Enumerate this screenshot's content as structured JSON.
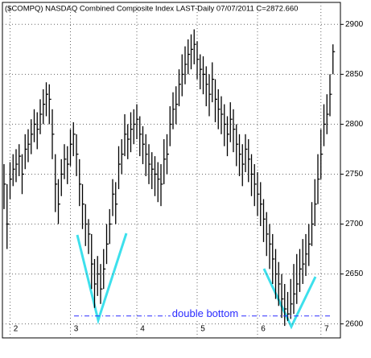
{
  "chart_data": {
    "type": "ohlc",
    "title": "($COMPQ) NASDAQ Combined Composite Index LAST-Daily  07/07/2011  C=2872.660",
    "categories": [
      null,
      null,
      "2",
      null,
      null,
      null,
      null,
      null,
      null,
      null,
      null,
      null,
      null,
      null,
      null,
      null,
      null,
      null,
      null,
      null,
      null,
      null,
      "3",
      null,
      null,
      null,
      null,
      null,
      null,
      null,
      null,
      null,
      null,
      null,
      null,
      null,
      null,
      null,
      null,
      null,
      null,
      null,
      null,
      null,
      "4",
      null,
      null,
      null,
      null,
      null,
      null,
      null,
      null,
      null,
      null,
      null,
      null,
      null,
      null,
      null,
      null,
      null,
      null,
      null,
      "5",
      null,
      null,
      null,
      null,
      null,
      null,
      null,
      null,
      null,
      null,
      null,
      null,
      null,
      null,
      null,
      null,
      null,
      null,
      null,
      "6",
      null,
      null,
      null,
      null,
      null,
      null,
      null,
      null,
      null,
      null,
      null,
      null,
      null,
      null,
      null,
      null,
      null,
      null,
      null,
      null,
      "7",
      null,
      null,
      null,
      null
    ],
    "high": [
      2760,
      2740,
      2762,
      2770,
      2775,
      2780,
      2770,
      2790,
      2795,
      2805,
      2815,
      2812,
      2825,
      2835,
      2842,
      2840,
      2815,
      2770,
      2745,
      2765,
      2780,
      2778,
      2795,
      2802,
      2790,
      2765,
      2740,
      2720,
      2705,
      2690,
      2665,
      2668,
      2660,
      2675,
      2700,
      2715,
      2745,
      2742,
      2778,
      2785,
      2810,
      2800,
      2812,
      2815,
      2820,
      2808,
      2798,
      2790,
      2780,
      2772,
      2768,
      2762,
      2760,
      2785,
      2790,
      2818,
      2832,
      2838,
      2855,
      2870,
      2878,
      2885,
      2890,
      2895,
      2883,
      2870,
      2868,
      2858,
      2850,
      2862,
      2845,
      2835,
      2828,
      2820,
      2808,
      2822,
      2815,
      2800,
      2790,
      2780,
      2790,
      2785,
      2770,
      2760,
      2752,
      2742,
      2725,
      2712,
      2700,
      2690,
      2675,
      2662,
      2650,
      2640,
      2632,
      2645,
      2660,
      2670,
      2675,
      2685,
      2690,
      2700,
      2722,
      2745,
      2770,
      2795,
      2820,
      2830,
      2850,
      2880
    ],
    "low": [
      2715,
      2675,
      2725,
      2738,
      2742,
      2748,
      2730,
      2755,
      2762,
      2770,
      2782,
      2775,
      2790,
      2800,
      2808,
      2800,
      2765,
      2712,
      2700,
      2728,
      2745,
      2740,
      2758,
      2768,
      2748,
      2718,
      2695,
      2678,
      2670,
      2635,
      2616,
      2628,
      2620,
      2635,
      2660,
      2680,
      2708,
      2700,
      2735,
      2750,
      2768,
      2765,
      2772,
      2780,
      2785,
      2768,
      2760,
      2748,
      2740,
      2735,
      2728,
      2722,
      2718,
      2740,
      2750,
      2778,
      2795,
      2800,
      2818,
      2828,
      2840,
      2850,
      2855,
      2860,
      2845,
      2835,
      2830,
      2818,
      2808,
      2822,
      2802,
      2795,
      2790,
      2778,
      2768,
      2782,
      2772,
      2758,
      2748,
      2738,
      2752,
      2742,
      2728,
      2718,
      2708,
      2698,
      2682,
      2668,
      2655,
      2640,
      2625,
      2618,
      2606,
      2598,
      2603,
      2605,
      2610,
      2620,
      2632,
      2640,
      2648,
      2658,
      2678,
      2698,
      2720,
      2745,
      2778,
      2790,
      2808,
      2850
    ],
    "close": [
      2740,
      2700,
      2745,
      2755,
      2760,
      2768,
      2750,
      2775,
      2780,
      2790,
      2800,
      2795,
      2810,
      2820,
      2830,
      2825,
      2790,
      2740,
      2720,
      2750,
      2765,
      2760,
      2780,
      2790,
      2770,
      2740,
      2720,
      2700,
      2690,
      2660,
      2640,
      2650,
      2635,
      2655,
      2680,
      2700,
      2730,
      2720,
      2760,
      2770,
      2790,
      2785,
      2795,
      2800,
      2805,
      2790,
      2780,
      2770,
      2760,
      2755,
      2750,
      2745,
      2740,
      2765,
      2770,
      2800,
      2815,
      2820,
      2840,
      2850,
      2860,
      2870,
      2875,
      2880,
      2865,
      2855,
      2850,
      2840,
      2830,
      2845,
      2825,
      2815,
      2810,
      2800,
      2790,
      2805,
      2795,
      2780,
      2770,
      2760,
      2775,
      2765,
      2750,
      2740,
      2730,
      2720,
      2705,
      2690,
      2680,
      2665,
      2650,
      2640,
      2625,
      2615,
      2610,
      2620,
      2630,
      2640,
      2655,
      2660,
      2670,
      2680,
      2700,
      2720,
      2745,
      2770,
      2800,
      2810,
      2830,
      2872.66
    ],
    "color": "#000000",
    "ylim": [
      2586,
      2922
    ],
    "yticks": [
      2600,
      2650,
      2700,
      2750,
      2800,
      2850,
      2900
    ],
    "grid": true,
    "reference_line": 2608,
    "annotation": "double bottom",
    "annotation_color": "#2b2bff",
    "highlight_color": "#3de0ec"
  }
}
